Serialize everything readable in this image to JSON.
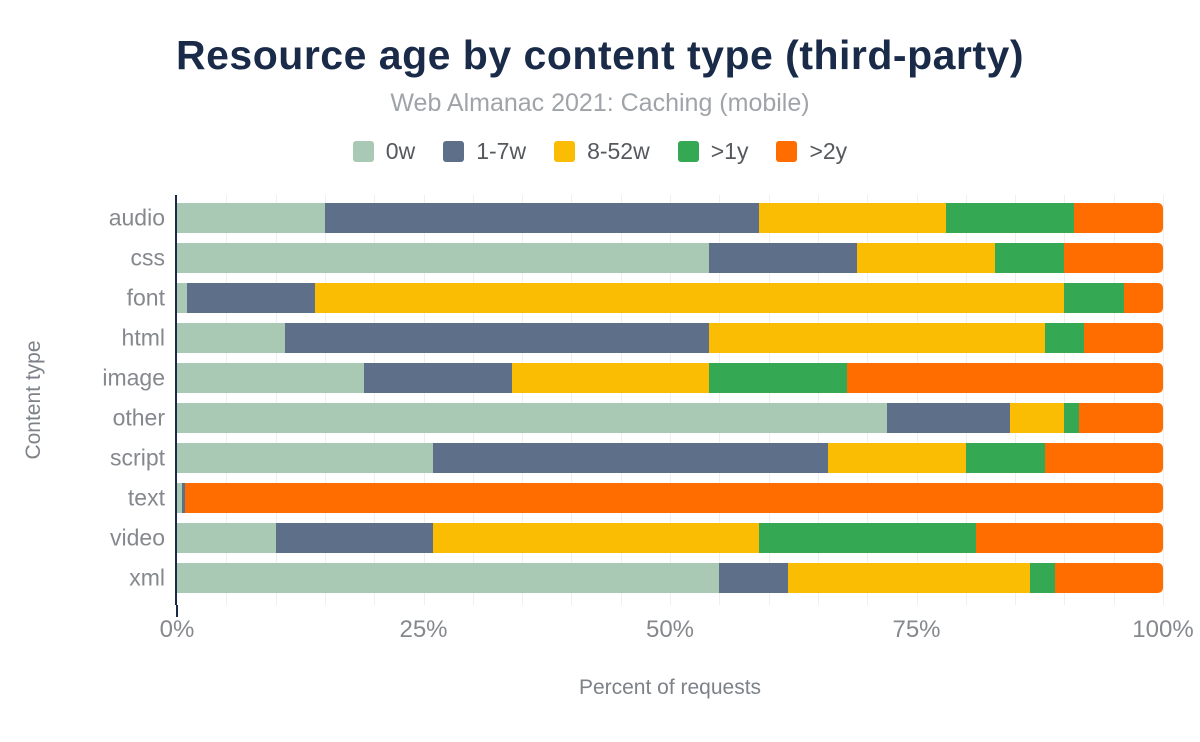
{
  "header": {
    "title": "Resource age by content type (third-party)",
    "subtitle": "Web Almanac 2021: Caching (mobile)"
  },
  "axes": {
    "xlabel": "Percent of requests",
    "ylabel": "Content type"
  },
  "colors": {
    "title": "#1a2b49",
    "subtitle": "#a0a4a9",
    "axis_line": "#1a2b49",
    "gridline": "#edeff0",
    "labels": "#85888d"
  },
  "chart_data": {
    "type": "bar",
    "stacked": true,
    "orientation": "horizontal",
    "title": "Resource age by content type (third-party)",
    "subtitle": "Web Almanac 2021: Caching (mobile)",
    "xlabel": "Percent of requests",
    "ylabel": "Content type",
    "xlim": [
      0,
      100
    ],
    "x_ticks": [
      "0%",
      "25%",
      "50%",
      "75%",
      "100%"
    ],
    "x_tick_values": [
      0,
      25,
      50,
      75,
      100
    ],
    "gridline_step_percent": 5,
    "legend_position": "top",
    "categories": [
      "audio",
      "css",
      "font",
      "html",
      "image",
      "other",
      "script",
      "text",
      "video",
      "xml"
    ],
    "series": [
      {
        "name": "0w",
        "color": "#a9c9b4",
        "values": [
          15,
          54,
          1,
          11,
          19,
          72,
          26,
          0.5,
          10,
          55
        ]
      },
      {
        "name": "1-7w",
        "color": "#5e7089",
        "values": [
          44,
          15,
          13,
          43,
          15,
          12.5,
          40,
          0.3,
          16,
          7
        ]
      },
      {
        "name": "8-52w",
        "color": "#fbbc04",
        "values": [
          19,
          14,
          76,
          34,
          20,
          5.5,
          14,
          0,
          33,
          24.5
        ]
      },
      {
        "name": ">1y",
        "color": "#34a853",
        "values": [
          13,
          7,
          6,
          4,
          14,
          1.5,
          8,
          0,
          22,
          2.5
        ]
      },
      {
        "name": ">2y",
        "color": "#ff6d00",
        "values": [
          9,
          10,
          4,
          8,
          32,
          8.5,
          12,
          99.2,
          19,
          11
        ]
      }
    ]
  }
}
